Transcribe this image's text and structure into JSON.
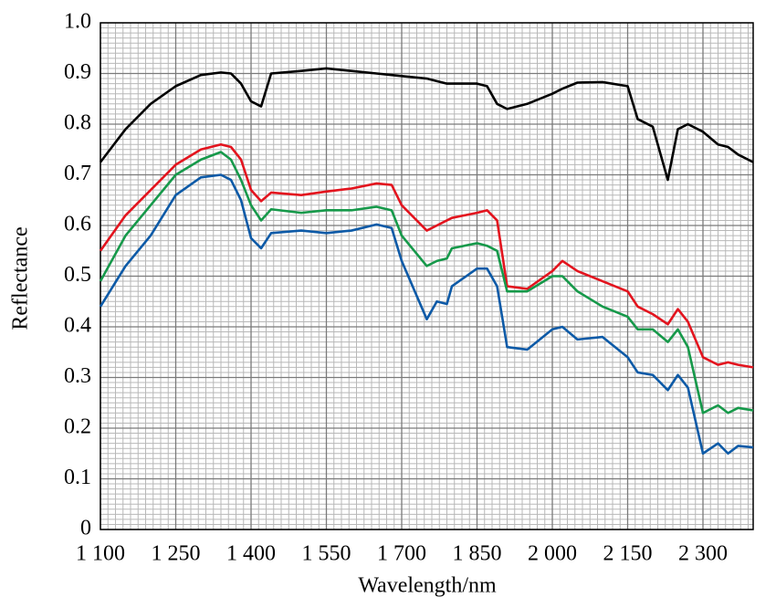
{
  "chart_data": {
    "type": "line",
    "x_label": "Wavelength/nm",
    "y_label": "Reflectance",
    "x": [
      1100,
      1150,
      1200,
      1250,
      1300,
      1340,
      1360,
      1380,
      1400,
      1420,
      1440,
      1500,
      1550,
      1600,
      1650,
      1680,
      1700,
      1750,
      1770,
      1790,
      1800,
      1850,
      1870,
      1890,
      1910,
      1950,
      2000,
      2020,
      2050,
      2100,
      2150,
      2170,
      2200,
      2230,
      2250,
      2270,
      2300,
      2330,
      2350,
      2370,
      2400
    ],
    "series": [
      {
        "color": "#000000",
        "values": [
          0.725,
          0.79,
          0.84,
          0.875,
          0.897,
          0.902,
          0.9,
          0.88,
          0.845,
          0.835,
          0.9,
          0.905,
          0.91,
          0.905,
          0.9,
          0.897,
          0.895,
          0.89,
          0.885,
          0.88,
          0.88,
          0.88,
          0.875,
          0.84,
          0.83,
          0.84,
          0.86,
          0.87,
          0.882,
          0.883,
          0.875,
          0.81,
          0.795,
          0.69,
          0.79,
          0.8,
          0.785,
          0.76,
          0.755,
          0.74,
          0.725
        ]
      },
      {
        "color": "#e3141e",
        "values": [
          0.55,
          0.62,
          0.67,
          0.72,
          0.75,
          0.76,
          0.755,
          0.73,
          0.67,
          0.648,
          0.665,
          0.66,
          0.667,
          0.673,
          0.683,
          0.68,
          0.64,
          0.59,
          0.6,
          0.61,
          0.615,
          0.625,
          0.63,
          0.61,
          0.48,
          0.475,
          0.51,
          0.53,
          0.51,
          0.49,
          0.47,
          0.44,
          0.425,
          0.405,
          0.435,
          0.41,
          0.34,
          0.325,
          0.33,
          0.325,
          0.32
        ]
      },
      {
        "color": "#16994a",
        "values": [
          0.49,
          0.58,
          0.64,
          0.7,
          0.73,
          0.745,
          0.73,
          0.69,
          0.64,
          0.61,
          0.632,
          0.625,
          0.63,
          0.63,
          0.637,
          0.63,
          0.58,
          0.52,
          0.53,
          0.535,
          0.555,
          0.565,
          0.56,
          0.55,
          0.47,
          0.47,
          0.5,
          0.5,
          0.47,
          0.44,
          0.42,
          0.395,
          0.395,
          0.37,
          0.395,
          0.36,
          0.23,
          0.245,
          0.23,
          0.24,
          0.235
        ]
      },
      {
        "color": "#0d5aa7",
        "values": [
          0.44,
          0.52,
          0.58,
          0.66,
          0.695,
          0.7,
          0.69,
          0.65,
          0.575,
          0.555,
          0.585,
          0.59,
          0.585,
          0.59,
          0.602,
          0.595,
          0.53,
          0.415,
          0.45,
          0.445,
          0.48,
          0.515,
          0.515,
          0.48,
          0.36,
          0.355,
          0.395,
          0.4,
          0.375,
          0.38,
          0.34,
          0.31,
          0.305,
          0.275,
          0.305,
          0.28,
          0.15,
          0.17,
          0.15,
          0.165,
          0.162
        ]
      }
    ],
    "xlim": [
      1100,
      2400
    ],
    "xticks": [
      {
        "value": 1100,
        "label": "1 100"
      },
      {
        "value": 1250,
        "label": "1 250"
      },
      {
        "value": 1400,
        "label": "1 400"
      },
      {
        "value": 1550,
        "label": "1 550"
      },
      {
        "value": 1700,
        "label": "1 700"
      },
      {
        "value": 1850,
        "label": "1 850"
      },
      {
        "value": 2000,
        "label": "2 000"
      },
      {
        "value": 2150,
        "label": "2 150"
      },
      {
        "value": 2300,
        "label": "2 300"
      }
    ],
    "ylim": [
      0,
      1
    ],
    "yticks": [
      0,
      0.1,
      0.2,
      0.3,
      0.4,
      0.5,
      0.6,
      0.7,
      0.8,
      0.9,
      {
        "value": 1,
        "label": "1.0"
      }
    ],
    "grid": true
  }
}
